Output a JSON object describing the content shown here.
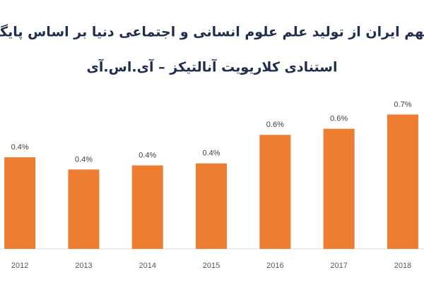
{
  "chart_data": {
    "type": "bar",
    "title": [
      "سهم ایران از تولید علم علوم انسانی و اجتماعی دنیا بر اساس پایگاه",
      "استنادی کلاریویت آنالتیکز – آی.اس.آی"
    ],
    "categories": [
      "2012",
      "2013",
      "2014",
      "2015",
      "2016",
      "2017",
      "2018"
    ],
    "values": [
      0.45,
      0.39,
      0.41,
      0.42,
      0.56,
      0.59,
      0.66
    ],
    "value_labels": [
      "0.4%",
      "0.4%",
      "0.4%",
      "0.4%",
      "0.6%",
      "0.6%",
      "0.7%"
    ],
    "color": "#ed7d31",
    "ylim": [
      0,
      0.8
    ]
  }
}
